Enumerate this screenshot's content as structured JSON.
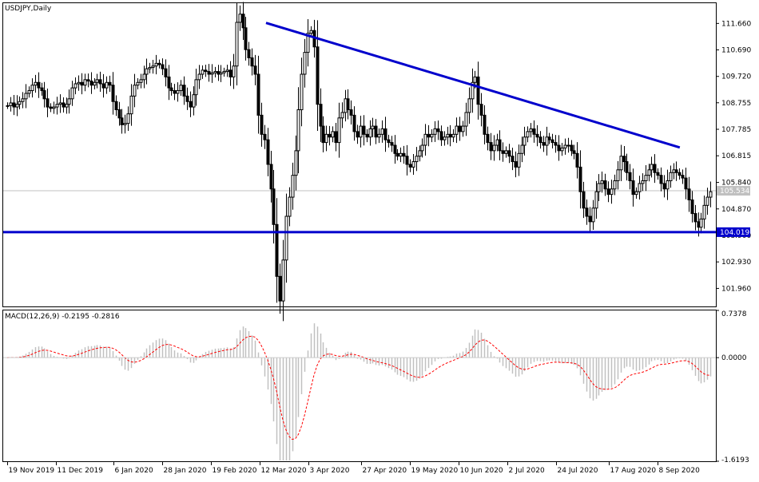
{
  "chart_data": {
    "type": "candlestick",
    "symbol": "USDJPY,Daily",
    "main_panel": {
      "y_range": [
        101.3,
        112.4
      ],
      "y_ticks": [
        "111.660",
        "110.690",
        "109.720",
        "108.755",
        "107.785",
        "106.815",
        "105.840",
        "104.870",
        "103.900",
        "102.930",
        "101.960"
      ],
      "current_price_label": "105.534",
      "current_price": 105.534,
      "support_label": "104.019",
      "support_level": 104.019,
      "trendline": {
        "start": {
          "date": "2020-03-15",
          "price": 111.68
        },
        "end": {
          "date": "2020-09-18",
          "price": 107.12
        }
      },
      "closes": [
        108.65,
        108.75,
        108.6,
        108.7,
        108.8,
        108.9,
        109.1,
        109.2,
        109.4,
        109.5,
        109.3,
        109.2,
        108.9,
        108.6,
        108.55,
        108.6,
        108.7,
        108.75,
        108.6,
        108.7,
        108.9,
        109.3,
        109.45,
        109.5,
        109.4,
        109.6,
        109.55,
        109.4,
        109.5,
        109.6,
        109.45,
        109.3,
        109.5,
        109.4,
        108.8,
        108.5,
        108.2,
        107.95,
        108.0,
        108.35,
        109.0,
        109.4,
        109.5,
        109.6,
        109.8,
        110.0,
        110.05,
        110.1,
        110.2,
        110.15,
        110.0,
        109.7,
        109.3,
        109.2,
        109.1,
        109.2,
        109.4,
        109.0,
        108.8,
        108.6,
        109.05,
        109.6,
        109.8,
        109.95,
        109.9,
        109.8,
        109.85,
        109.9,
        109.8,
        109.85,
        109.9,
        109.95,
        109.7,
        110.1,
        111.7,
        112.0,
        111.5,
        110.7,
        110.4,
        110.1,
        109.8,
        108.3,
        107.6,
        107.4,
        106.5,
        105.6,
        104.3,
        102.4,
        101.5,
        103.0,
        104.6,
        105.3,
        106.1,
        107.0,
        108.5,
        109.8,
        110.6,
        111.3,
        111.4,
        110.8,
        108.7,
        107.9,
        107.3,
        107.6,
        107.5,
        107.7,
        107.3,
        108.2,
        108.4,
        108.9,
        108.5,
        108.3,
        107.7,
        107.5,
        107.9,
        107.6,
        107.5,
        107.8,
        107.9,
        107.5,
        107.6,
        107.8,
        107.4,
        107.3,
        107.2,
        106.9,
        106.8,
        106.9,
        106.8,
        106.5,
        106.4,
        106.6,
        106.8,
        107.0,
        107.2,
        107.6,
        107.5,
        107.6,
        107.8,
        107.7,
        107.4,
        107.5,
        107.6,
        107.5,
        107.6,
        107.9,
        107.7,
        107.9,
        108.4,
        108.9,
        109.5,
        109.7,
        108.7,
        108.3,
        107.6,
        107.3,
        107.0,
        107.2,
        107.4,
        107.0,
        106.9,
        107.0,
        106.8,
        106.6,
        106.4,
        106.9,
        107.2,
        107.5,
        107.7,
        107.8,
        107.6,
        107.5,
        107.3,
        107.2,
        107.5,
        107.4,
        107.3,
        107.2,
        107.0,
        107.1,
        107.2,
        107.2,
        107.0,
        106.9,
        106.4,
        105.5,
        104.9,
        104.6,
        104.4,
        104.9,
        105.5,
        105.8,
        105.9,
        105.6,
        105.4,
        105.6,
        105.9,
        106.3,
        106.8,
        106.6,
        106.2,
        105.9,
        105.4,
        105.5,
        105.8,
        105.9,
        106.1,
        106.3,
        106.5,
        106.2,
        106.1,
        105.8,
        105.6,
        105.9,
        106.2,
        106.3,
        106.2,
        106.1,
        106.0,
        105.6,
        105.2,
        104.7,
        104.4,
        104.2,
        104.5,
        105.0,
        105.3,
        105.5
      ]
    },
    "macd_panel": {
      "label": "MACD(12,26,9) -0.2195 -0.2816",
      "indicator": "MACD(12,26,9)",
      "macd_value": -0.2195,
      "signal_value": -0.2816,
      "y_range": [
        -1.6193,
        0.7378
      ],
      "y_ticks": [
        "0.7378",
        "0.0000",
        "-1.6193"
      ],
      "series": [
        {
          "name": "MACD",
          "style": "histogram",
          "color": "#c0c0c0"
        },
        {
          "name": "Signal",
          "style": "dashed-line",
          "color": "#ff0000"
        }
      ]
    },
    "x_tick_labels": [
      "19 Nov 2019",
      "11 Dec 2019",
      "6 Jan 2020",
      "28 Jan 2020",
      "19 Feb 2020",
      "12 Mar 2020",
      "3 Apr 2020",
      "27 Apr 2020",
      "19 May 2020",
      "10 Jun 2020",
      "2 Jul 2020",
      "24 Jul 2020",
      "17 Aug 2020",
      "8 Sep 2020"
    ],
    "x_tick_dates": [
      "2019-11-19",
      "2019-12-11",
      "2020-01-06",
      "2020-01-28",
      "2020-02-19",
      "2020-03-12",
      "2020-04-03",
      "2020-04-27",
      "2020-05-19",
      "2020-06-10",
      "2020-07-02",
      "2020-07-24",
      "2020-08-17",
      "2020-09-08"
    ],
    "first_bar_date": "2019-11-19",
    "colors": {
      "candle": "#000000",
      "lines": "#0000cc",
      "price_tag_bg": "#0000cc",
      "price_tag_fg": "#ffffff",
      "current_tag_bg": "#c0c0c0",
      "macd_hist": "#c0c0c0",
      "signal": "#ff0000"
    }
  }
}
